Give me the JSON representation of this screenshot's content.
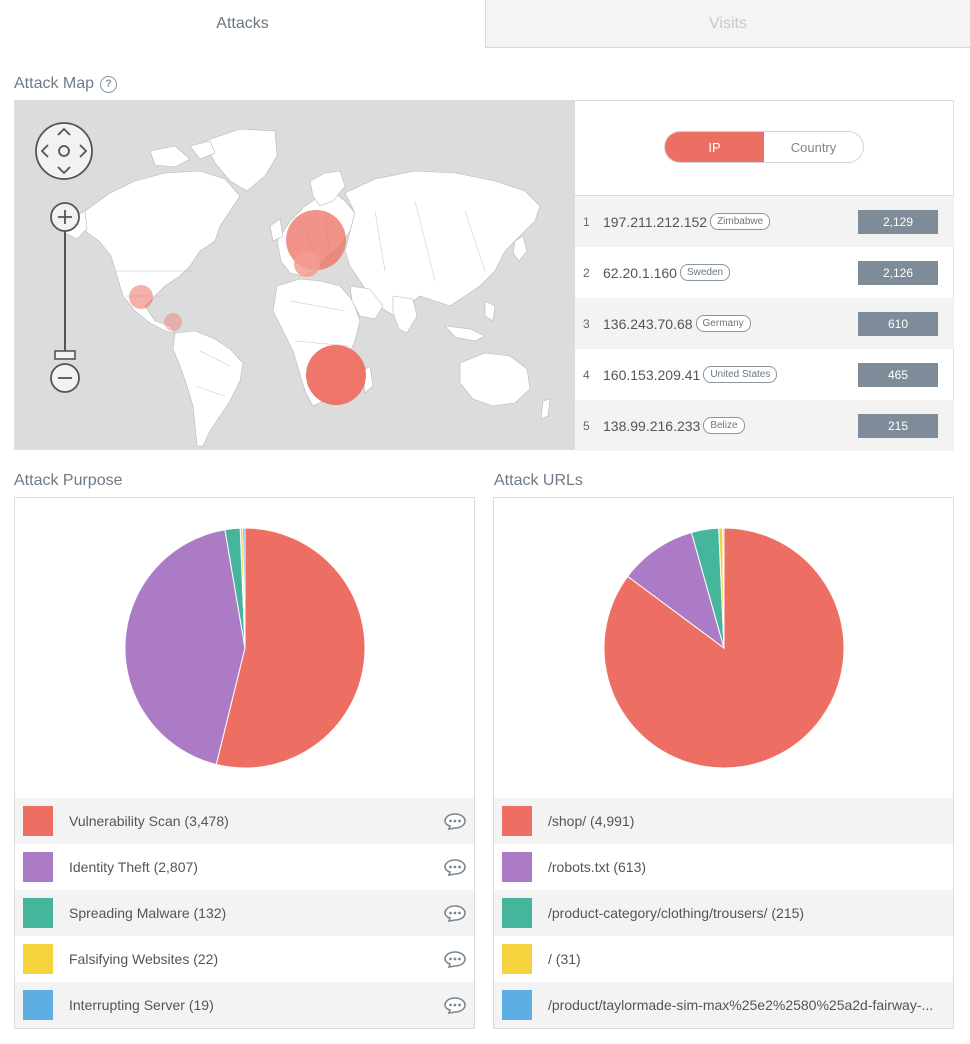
{
  "tabs": [
    {
      "label": "Attacks",
      "active": true
    },
    {
      "label": "Visits",
      "active": false
    }
  ],
  "attack_map": {
    "title": "Attack Map",
    "help": "?",
    "toggle": {
      "ip_label": "IP",
      "country_label": "Country",
      "selected": "IP"
    },
    "zoom": {
      "in_label": "+",
      "out_label": "−"
    },
    "ranking": [
      {
        "rank": "1",
        "ip": "197.211.212.152",
        "country": "Zimbabwe",
        "count": "2,129"
      },
      {
        "rank": "2",
        "ip": "62.20.1.160",
        "country": "Sweden",
        "count": "2,126"
      },
      {
        "rank": "3",
        "ip": "136.243.70.68",
        "country": "Germany",
        "count": "610"
      },
      {
        "rank": "4",
        "ip": "160.153.209.41",
        "country": "United States",
        "count": "465"
      },
      {
        "rank": "5",
        "ip": "138.99.216.233",
        "country": "Belize",
        "count": "215"
      }
    ]
  },
  "attack_purpose": {
    "title": "Attack Purpose",
    "chart_data": {
      "type": "pie",
      "categories": [
        "Vulnerability Scan",
        "Identity Theft",
        "Spreading Malware",
        "Falsifying Websites",
        "Interrupting Server"
      ],
      "values": [
        3478,
        2807,
        132,
        22,
        19
      ],
      "colors": [
        "#ed6f63",
        "#ac7bc6",
        "#45b69c",
        "#f5d33f",
        "#5eade3"
      ]
    },
    "legend": [
      {
        "label": "Vulnerability Scan (3,478)",
        "color": "#ed6f63"
      },
      {
        "label": "Identity Theft (2,807)",
        "color": "#ac7bc6"
      },
      {
        "label": "Spreading Malware (132)",
        "color": "#45b69c"
      },
      {
        "label": "Falsifying Websites (22)",
        "color": "#f5d33f"
      },
      {
        "label": "Interrupting Server (19)",
        "color": "#5eade3"
      }
    ]
  },
  "attack_urls": {
    "title": "Attack URLs",
    "chart_data": {
      "type": "pie",
      "categories": [
        "/shop/",
        "/robots.txt",
        "/product-category/clothing/trousers/",
        "/",
        "/product/taylormade-sim-max%25e2%2580%25a2d-fairway-..."
      ],
      "values": [
        4991,
        613,
        215,
        31,
        10
      ],
      "colors": [
        "#ed6f63",
        "#ac7bc6",
        "#45b69c",
        "#f5d33f",
        "#5eade3"
      ]
    },
    "legend": [
      {
        "label": "/shop/ (4,991)",
        "color": "#ed6f63"
      },
      {
        "label": "/robots.txt (613)",
        "color": "#ac7bc6"
      },
      {
        "label": "/product-category/clothing/trousers/ (215)",
        "color": "#45b69c"
      },
      {
        "label": "/ (31)",
        "color": "#f5d33f"
      },
      {
        "label": "/product/taylormade-sim-max%25e2%2580%25a2d-fairway-...",
        "color": "#5eade3"
      }
    ]
  }
}
